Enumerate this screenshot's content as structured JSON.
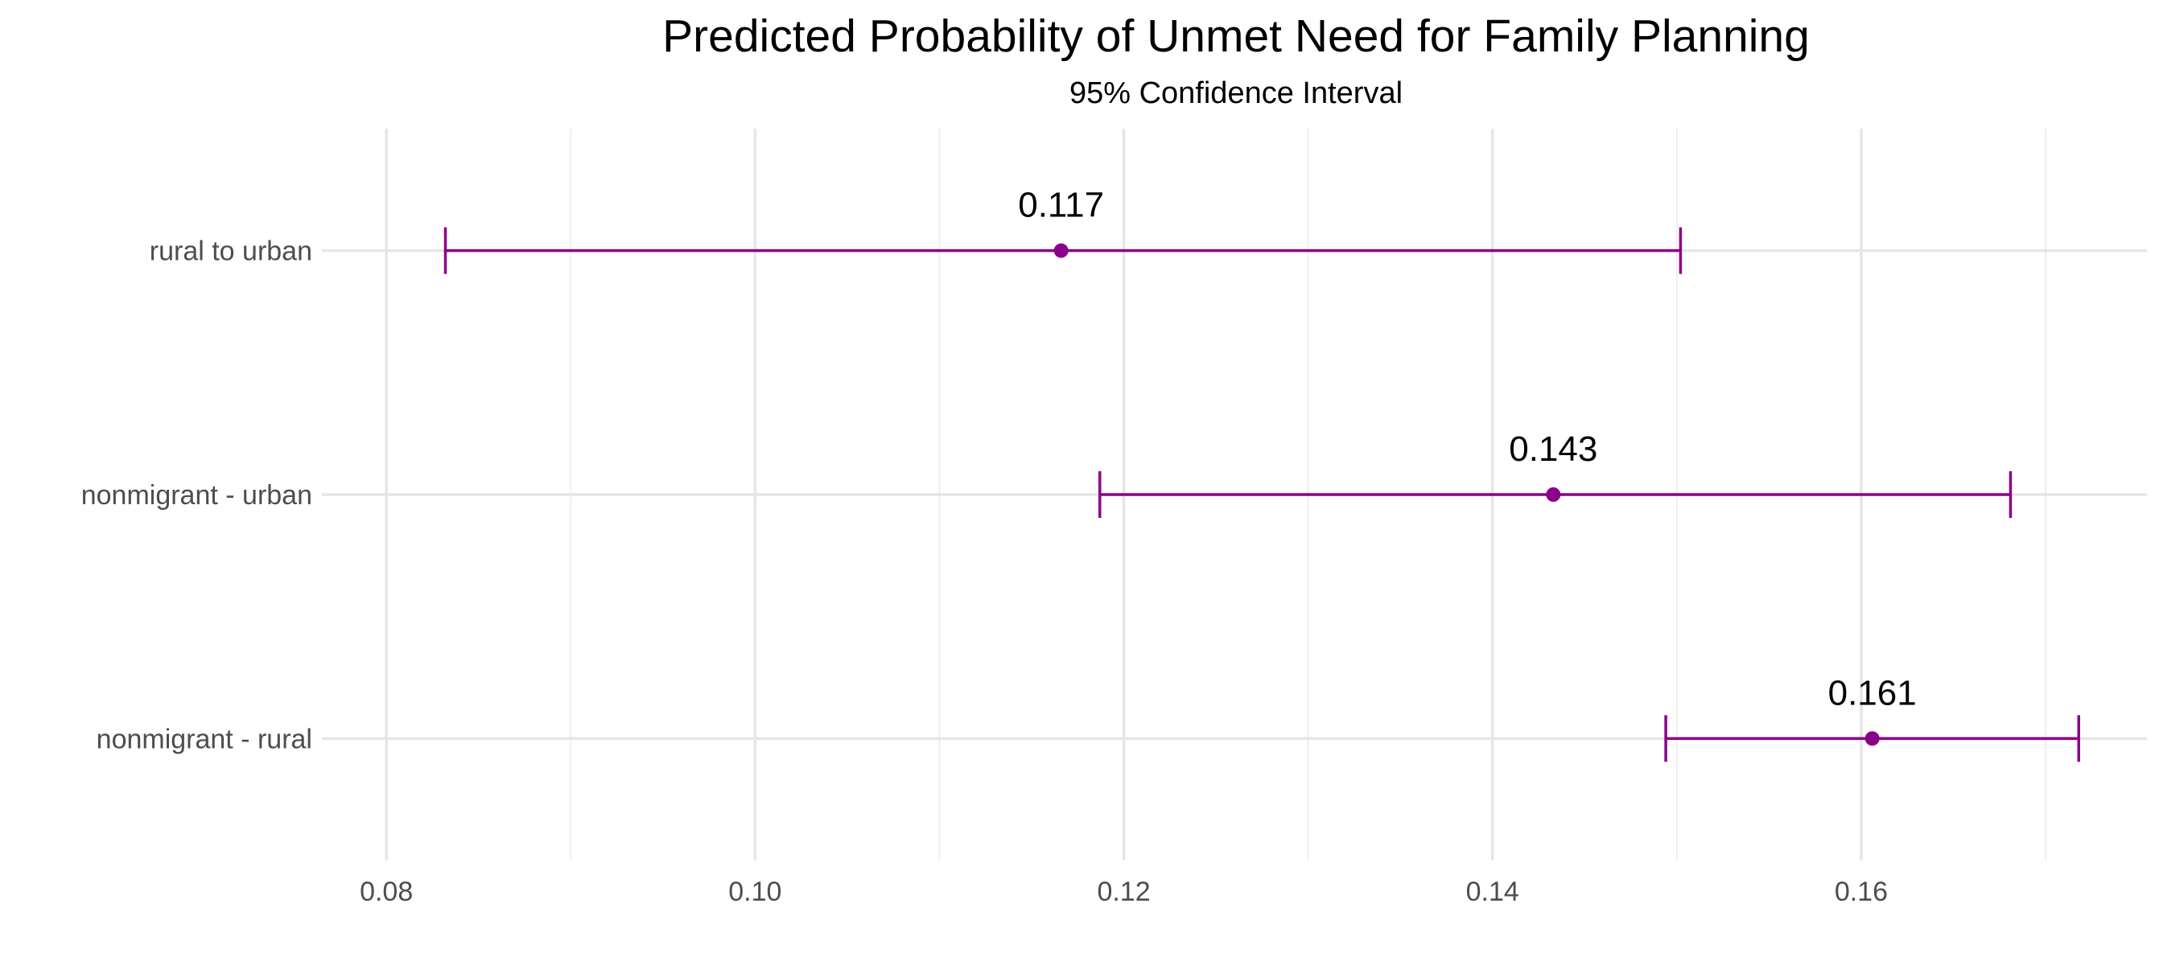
{
  "chart_data": {
    "type": "errorbar",
    "title": "Predicted Probability of Unmet Need for Family Planning",
    "subtitle": "95% Confidence Interval",
    "xlabel": "",
    "ylabel": "",
    "xlim": [
      0.0765,
      0.1755
    ],
    "x_ticks": [
      0.08,
      0.1,
      0.12,
      0.14,
      0.16
    ],
    "x_tick_labels": [
      "0.08",
      "0.10",
      "0.12",
      "0.14",
      "0.16"
    ],
    "x_minor_ticks": [
      0.09,
      0.11,
      0.13,
      0.15,
      0.17
    ],
    "categories": [
      "rural to urban",
      "nonmigrant - urban",
      "nonmigrant - rural"
    ],
    "estimates": [
      0.1166,
      0.1433,
      0.1606
    ],
    "lower": [
      0.0832,
      0.1187,
      0.1494
    ],
    "upper": [
      0.1502,
      0.1681,
      0.1718
    ],
    "data_labels": [
      "0.117",
      "0.143",
      "0.161"
    ],
    "color": "#8b008b",
    "grid": true,
    "legend": "none"
  }
}
